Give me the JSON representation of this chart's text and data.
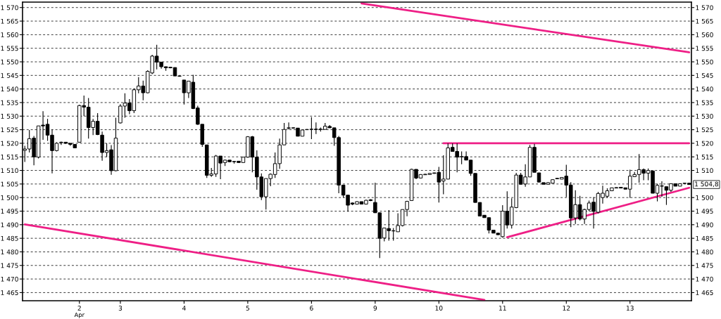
{
  "chart_data": {
    "type": "candlestick",
    "categories": [
      null,
      null,
      null,
      null,
      null,
      null,
      null,
      null,
      null,
      null,
      null,
      null,
      "2",
      null,
      null,
      null,
      null,
      null,
      null,
      null,
      null,
      "3",
      null,
      null,
      null,
      null,
      null,
      null,
      null,
      null,
      null,
      null,
      null,
      null,
      null,
      "4",
      null,
      null,
      null,
      null,
      null,
      null,
      null,
      null,
      null,
      null,
      null,
      null,
      null,
      "5",
      null,
      null,
      null,
      null,
      null,
      null,
      null,
      null,
      null,
      null,
      null,
      null,
      null,
      "6",
      null,
      null,
      null,
      null,
      null,
      null,
      null,
      null,
      null,
      null,
      null,
      null,
      null,
      "9",
      null,
      null,
      null,
      null,
      null,
      null,
      null,
      null,
      null,
      null,
      null,
      null,
      null,
      "10",
      null,
      null,
      null,
      null,
      null,
      null,
      null,
      null,
      null,
      null,
      null,
      null,
      null,
      "11",
      null,
      null,
      null,
      null,
      null,
      null,
      null,
      null,
      null,
      null,
      null,
      null,
      null,
      "12",
      null,
      null,
      null,
      null,
      null,
      null,
      null,
      null,
      null,
      null,
      null,
      null,
      null,
      "13",
      null,
      null,
      null,
      null,
      null,
      null,
      null,
      null,
      null,
      null,
      null,
      null,
      null
    ],
    "ohlc": [
      [
        1517.4,
        1519.1,
        1513.1,
        1517.9
      ],
      [
        1517.9,
        1524.9,
        1516.6,
        1521.7
      ],
      [
        1521.9,
        1522.7,
        1511.9,
        1515.0
      ],
      [
        1514.9,
        1526.4,
        1514.4,
        1526.4
      ],
      [
        1526.7,
        1531.8,
        1521.3,
        1526.4
      ],
      [
        1527.0,
        1529.0,
        1520.9,
        1523.0
      ],
      [
        1523.0,
        1525.1,
        1508.9,
        1517.3
      ],
      [
        1517.3,
        1520.4,
        1517.0,
        1520.0
      ],
      [
        1520.2,
        1520.6,
        1519.4,
        1520.4
      ],
      [
        1520.4,
        1520.4,
        1519.8,
        1520.0
      ],
      [
        1520.0,
        1520.0,
        1519.1,
        1519.6
      ],
      [
        1519.6,
        1519.6,
        1518.3,
        1518.3
      ],
      [
        1520.4,
        1534.2,
        1520.4,
        1533.9
      ],
      [
        1533.9,
        1537.6,
        1530.0,
        1533.3
      ],
      [
        1533.3,
        1536.7,
        1521.7,
        1525.8
      ],
      [
        1525.8,
        1529.0,
        1523.0,
        1528.1
      ],
      [
        1528.1,
        1531.1,
        1523.0,
        1523.2
      ],
      [
        1523.0,
        1524.3,
        1513.6,
        1516.6
      ],
      [
        1516.6,
        1520.0,
        1514.9,
        1517.3
      ],
      [
        1517.6,
        1519.3,
        1508.4,
        1509.9
      ],
      [
        1509.9,
        1529.4,
        1509.7,
        1521.9
      ],
      [
        1527.5,
        1534.4,
        1527.3,
        1533.7
      ],
      [
        1533.7,
        1538.4,
        1529.4,
        1534.8
      ],
      [
        1534.8,
        1536.3,
        1530.7,
        1532.0
      ],
      [
        1532.0,
        1540.2,
        1531.1,
        1539.7
      ],
      [
        1539.7,
        1544.4,
        1538.4,
        1541.1
      ],
      [
        1541.1,
        1543.1,
        1535.8,
        1538.6
      ],
      [
        1538.6,
        1546.9,
        1538.4,
        1546.5
      ],
      [
        1545.9,
        1552.6,
        1545.5,
        1552.1
      ],
      [
        1552.1,
        1556.3,
        1547.2,
        1549.9
      ],
      [
        1549.9,
        1549.9,
        1547.5,
        1548.2
      ],
      [
        1548.2,
        1548.2,
        1546.7,
        1547.8
      ],
      [
        1548.0,
        1548.2,
        1547.6,
        1547.8
      ],
      [
        1547.9,
        1547.9,
        1544.8,
        1544.8
      ],
      [
        1544.8,
        1544.8,
        1544.5,
        1544.7
      ],
      [
        1543.3,
        1543.3,
        1534.3,
        1538.6
      ],
      [
        1538.6,
        1542.9,
        1536.7,
        1542.9
      ],
      [
        1542.5,
        1545.2,
        1532.6,
        1532.8
      ],
      [
        1533.0,
        1533.8,
        1526.8,
        1527.0
      ],
      [
        1527.0,
        1527.0,
        1518.7,
        1519.6
      ],
      [
        1519.4,
        1519.4,
        1507.2,
        1508.2
      ],
      [
        1508.2,
        1510.9,
        1507.6,
        1508.7
      ],
      [
        1508.7,
        1515.7,
        1507.6,
        1515.3
      ],
      [
        1515.3,
        1515.3,
        1506.8,
        1512.7
      ],
      [
        1512.9,
        1514.0,
        1511.6,
        1513.8
      ],
      [
        1513.8,
        1513.8,
        1513.0,
        1513.2
      ],
      [
        1513.3,
        1513.4,
        1512.5,
        1513.2
      ],
      [
        1513.4,
        1513.4,
        1512.9,
        1512.9
      ],
      [
        1512.9,
        1514.9,
        1512.9,
        1514.9
      ],
      [
        1514.9,
        1522.6,
        1514.7,
        1522.4
      ],
      [
        1522.4,
        1522.7,
        1509.3,
        1514.9
      ],
      [
        1514.9,
        1517.4,
        1502.9,
        1507.6
      ],
      [
        1507.6,
        1508.9,
        1499.1,
        1500.3
      ],
      [
        1500.3,
        1507.0,
        1495.6,
        1507.0
      ],
      [
        1507.0,
        1508.9,
        1504.2,
        1508.6
      ],
      [
        1508.5,
        1516.6,
        1507.2,
        1512.5
      ],
      [
        1512.5,
        1521.7,
        1510.6,
        1519.4
      ],
      [
        1519.4,
        1527.5,
        1519.4,
        1525.1
      ],
      [
        1525.5,
        1527.7,
        1525.1,
        1525.7
      ],
      [
        1525.7,
        1525.8,
        1525.4,
        1525.6
      ],
      [
        1525.6,
        1525.6,
        1522.6,
        1522.6
      ],
      [
        1522.6,
        1524.9,
        1522.6,
        1524.9
      ],
      [
        1525.0,
        1525.2,
        1524.9,
        1525.1
      ],
      [
        1525.1,
        1529.6,
        1521.5,
        1525.2
      ],
      [
        1525.2,
        1527.7,
        1523.4,
        1525.1
      ],
      [
        1525.1,
        1525.8,
        1524.3,
        1525.2
      ],
      [
        1525.1,
        1527.5,
        1525.1,
        1526.3
      ],
      [
        1526.2,
        1526.7,
        1525.7,
        1525.7
      ],
      [
        1525.7,
        1525.7,
        1519.1,
        1522.1
      ],
      [
        1522.1,
        1522.7,
        1501.6,
        1504.6
      ],
      [
        1504.6,
        1504.6,
        1500.0,
        1500.9
      ],
      [
        1500.9,
        1500.9,
        1494.8,
        1497.2
      ],
      [
        1498.0,
        1498.2,
        1497.2,
        1497.6
      ],
      [
        1497.6,
        1498.6,
        1497.6,
        1498.5
      ],
      [
        1498.5,
        1498.5,
        1497.6,
        1497.6
      ],
      [
        1497.6,
        1499.2,
        1497.5,
        1499.0
      ],
      [
        1499.2,
        1499.4,
        1498.7,
        1498.9
      ],
      [
        1498.2,
        1505.5,
        1494.4,
        1494.4
      ],
      [
        1494.4,
        1494.4,
        1477.7,
        1485.0
      ],
      [
        1485.1,
        1488.8,
        1483.9,
        1488.8
      ],
      [
        1488.6,
        1495.4,
        1484.1,
        1487.8
      ],
      [
        1487.7,
        1488.8,
        1484.1,
        1487.8
      ],
      [
        1487.4,
        1494.2,
        1487.4,
        1489.7
      ],
      [
        1489.7,
        1495.6,
        1489.4,
        1495.6
      ],
      [
        1495.6,
        1498.8,
        1493.1,
        1498.6
      ],
      [
        1498.9,
        1510.6,
        1498.9,
        1510.4
      ],
      [
        1510.4,
        1510.4,
        1506.8,
        1507.2
      ],
      [
        1507.2,
        1508.6,
        1507.1,
        1508.5
      ],
      [
        1508.4,
        1508.7,
        1508.3,
        1508.6
      ],
      [
        1508.5,
        1509.0,
        1508.4,
        1508.9
      ],
      [
        1508.9,
        1509.2,
        1508.8,
        1509.1
      ],
      [
        1509.3,
        1511.3,
        1498.2,
        1505.7
      ],
      [
        1506.1,
        1515.6,
        1501.2,
        1506.8
      ],
      [
        1506.8,
        1520.0,
        1506.8,
        1518.3
      ],
      [
        1518.5,
        1520.0,
        1517.0,
        1517.0
      ],
      [
        1517.0,
        1520.0,
        1509.3,
        1514.9
      ],
      [
        1515.0,
        1517.0,
        1512.3,
        1515.1
      ],
      [
        1515.1,
        1517.0,
        1513.8,
        1513.8
      ],
      [
        1513.8,
        1513.8,
        1508.0,
        1508.9
      ],
      [
        1508.9,
        1508.9,
        1498.2,
        1498.2
      ],
      [
        1498.2,
        1498.2,
        1493.2,
        1493.2
      ],
      [
        1493.5,
        1493.6,
        1492.6,
        1492.6
      ],
      [
        1492.6,
        1492.6,
        1486.8,
        1488.0
      ],
      [
        1488.0,
        1488.0,
        1486.9,
        1486.9
      ],
      [
        1486.9,
        1486.9,
        1486.3,
        1486.3
      ],
      [
        1485.6,
        1497.2,
        1485.2,
        1495.0
      ],
      [
        1495.0,
        1502.3,
        1488.6,
        1489.9
      ],
      [
        1489.9,
        1499.7,
        1488.6,
        1496.5
      ],
      [
        1496.3,
        1509.1,
        1496.1,
        1508.3
      ],
      [
        1508.3,
        1509.1,
        1504.9,
        1504.9
      ],
      [
        1505.0,
        1512.3,
        1504.0,
        1507.6
      ],
      [
        1507.6,
        1519.4,
        1507.6,
        1518.5
      ],
      [
        1518.5,
        1519.8,
        1509.3,
        1509.3
      ],
      [
        1509.1,
        1509.1,
        1505.7,
        1505.7
      ],
      [
        1505.5,
        1505.5,
        1504.9,
        1504.9
      ],
      [
        1504.9,
        1505.6,
        1504.9,
        1505.5
      ],
      [
        1505.3,
        1506.7,
        1505.2,
        1506.6
      ],
      [
        1506.9,
        1507.2,
        1506.9,
        1507.1
      ],
      [
        1506.8,
        1507.4,
        1506.8,
        1507.4
      ],
      [
        1507.9,
        1512.1,
        1500.2,
        1504.6
      ],
      [
        1504.6,
        1505.7,
        1489.1,
        1492.5
      ],
      [
        1492.5,
        1502.7,
        1490.3,
        1497.4
      ],
      [
        1497.4,
        1500.6,
        1491.6,
        1492.1
      ],
      [
        1492.1,
        1495.9,
        1490.3,
        1495.6
      ],
      [
        1495.6,
        1498.9,
        1495.0,
        1498.0
      ],
      [
        1498.3,
        1500.2,
        1488.6,
        1494.9
      ],
      [
        1494.6,
        1502.1,
        1494.2,
        1501.5
      ],
      [
        1500.0,
        1504.4,
        1497.8,
        1501.6
      ],
      [
        1500.5,
        1503.4,
        1499.9,
        1502.5
      ],
      [
        1502.5,
        1503.6,
        1502.5,
        1503.6
      ],
      [
        1503.5,
        1503.8,
        1503.4,
        1503.7
      ],
      [
        1503.8,
        1503.9,
        1503.4,
        1503.5
      ],
      [
        1503.6,
        1503.6,
        1503.1,
        1503.1
      ],
      [
        1503.1,
        1510.3,
        1499.9,
        1507.9
      ],
      [
        1507.7,
        1509.4,
        1507.7,
        1508.5
      ],
      [
        1508.5,
        1516.0,
        1505.5,
        1510.3
      ],
      [
        1510.3,
        1510.7,
        1506.4,
        1509.0
      ],
      [
        1509.0,
        1510.7,
        1506.4,
        1510.0
      ],
      [
        1509.8,
        1509.8,
        1501.6,
        1501.6
      ],
      [
        1501.6,
        1505.1,
        1498.6,
        1504.5
      ],
      [
        1504.3,
        1506.0,
        1500.3,
        1504.2
      ],
      [
        1504.0,
        1504.0,
        1497.3,
        1502.7
      ],
      [
        1502.7,
        1505.1,
        1502.1,
        1505.1
      ],
      [
        1505.1,
        1505.1,
        1504.2,
        1504.2
      ],
      [
        1504.2,
        1505.2,
        1504.2,
        1505.1
      ],
      [
        1505.2,
        1505.4,
        1505.1,
        1505.3
      ],
      [
        1505.3,
        1505.4,
        1504.8,
        1504.8
      ]
    ],
    "series": [
      {
        "type": "line",
        "color": "#ee1f86",
        "values": [
          1490.1,
          null,
          null,
          null,
          null,
          null,
          null,
          null,
          null,
          null,
          null,
          null,
          null,
          null,
          null,
          null,
          null,
          null,
          null,
          null,
          null,
          null,
          null,
          null,
          null,
          null,
          null,
          null,
          null,
          null,
          null,
          null,
          null,
          null,
          null,
          null,
          null,
          null,
          null,
          null,
          null,
          null,
          null,
          null,
          null,
          null,
          null,
          null,
          null,
          null,
          null,
          null,
          null,
          null,
          null,
          null,
          null,
          null,
          null,
          null,
          null,
          null,
          null,
          null,
          null,
          null,
          null,
          null,
          null,
          null,
          null,
          null,
          null,
          null,
          null,
          null,
          null,
          null,
          null,
          null,
          null,
          null,
          null,
          null,
          null,
          null,
          null,
          null,
          null,
          null,
          null,
          null,
          null,
          null,
          null,
          null,
          null,
          null,
          null,
          null,
          null,
          1462.3,
          null,
          null,
          null,
          null,
          null,
          null,
          null,
          null,
          null,
          null,
          null,
          null,
          null,
          null,
          null,
          null,
          null,
          null,
          null,
          null,
          null,
          null,
          null,
          null,
          null,
          null,
          null,
          null,
          null,
          null,
          null,
          null,
          null,
          null,
          null,
          null,
          null,
          null,
          null,
          null,
          null,
          null,
          null,
          null,
          null
        ]
      },
      {
        "type": "line",
        "color": "#ee1f86",
        "values": [
          null,
          null,
          null,
          null,
          null,
          null,
          null,
          null,
          null,
          null,
          null,
          null,
          null,
          null,
          null,
          null,
          null,
          null,
          null,
          null,
          null,
          null,
          null,
          null,
          null,
          null,
          null,
          null,
          null,
          null,
          null,
          null,
          null,
          null,
          null,
          null,
          null,
          null,
          null,
          null,
          null,
          null,
          null,
          null,
          null,
          null,
          null,
          null,
          null,
          null,
          null,
          null,
          null,
          null,
          null,
          null,
          null,
          null,
          null,
          null,
          null,
          null,
          null,
          null,
          null,
          null,
          null,
          null,
          null,
          null,
          null,
          null,
          null,
          null,
          1571.5,
          null,
          null,
          null,
          null,
          null,
          null,
          null,
          null,
          null,
          null,
          null,
          null,
          null,
          null,
          null,
          null,
          null,
          null,
          null,
          null,
          null,
          null,
          null,
          null,
          null,
          null,
          null,
          null,
          null,
          null,
          null,
          null,
          null,
          null,
          null,
          null,
          null,
          null,
          null,
          null,
          null,
          null,
          null,
          null,
          null,
          null,
          null,
          null,
          null,
          null,
          null,
          null,
          null,
          null,
          null,
          null,
          null,
          null,
          null,
          null,
          null,
          null,
          null,
          null,
          null,
          null,
          null,
          null,
          null,
          null,
          null,
          1553.5
        ]
      },
      {
        "type": "line",
        "color": "#ee1f86",
        "values": [
          null,
          null,
          null,
          null,
          null,
          null,
          null,
          null,
          null,
          null,
          null,
          null,
          null,
          null,
          null,
          null,
          null,
          null,
          null,
          null,
          null,
          null,
          null,
          null,
          null,
          null,
          null,
          null,
          null,
          null,
          null,
          null,
          null,
          null,
          null,
          null,
          null,
          null,
          null,
          null,
          null,
          null,
          null,
          null,
          null,
          null,
          null,
          null,
          null,
          null,
          null,
          null,
          null,
          null,
          null,
          null,
          null,
          null,
          null,
          null,
          null,
          null,
          null,
          null,
          null,
          null,
          null,
          null,
          null,
          null,
          null,
          null,
          null,
          null,
          null,
          null,
          null,
          null,
          null,
          null,
          null,
          null,
          null,
          null,
          null,
          null,
          null,
          null,
          null,
          null,
          null,
          null,
          1520,
          null,
          null,
          null,
          null,
          null,
          null,
          null,
          null,
          null,
          null,
          null,
          null,
          null,
          null,
          null,
          null,
          null,
          null,
          null,
          null,
          null,
          null,
          null,
          null,
          null,
          null,
          null,
          null,
          null,
          null,
          null,
          null,
          null,
          null,
          null,
          null,
          null,
          null,
          null,
          null,
          null,
          null,
          null,
          null,
          null,
          null,
          null,
          null,
          null,
          null,
          null,
          null,
          null,
          1520
        ]
      },
      {
        "type": "line",
        "color": "#ee1f86",
        "values": [
          null,
          null,
          null,
          null,
          null,
          null,
          null,
          null,
          null,
          null,
          null,
          null,
          null,
          null,
          null,
          null,
          null,
          null,
          null,
          null,
          null,
          null,
          null,
          null,
          null,
          null,
          null,
          null,
          null,
          null,
          null,
          null,
          null,
          null,
          null,
          null,
          null,
          null,
          null,
          null,
          null,
          null,
          null,
          null,
          null,
          null,
          null,
          null,
          null,
          null,
          null,
          null,
          null,
          null,
          null,
          null,
          null,
          null,
          null,
          null,
          null,
          null,
          null,
          null,
          null,
          null,
          null,
          null,
          null,
          null,
          null,
          null,
          null,
          null,
          null,
          null,
          null,
          null,
          null,
          null,
          null,
          null,
          null,
          null,
          null,
          null,
          null,
          null,
          null,
          null,
          null,
          null,
          null,
          null,
          null,
          null,
          null,
          null,
          null,
          null,
          null,
          null,
          null,
          null,
          null,
          null,
          1485.4,
          null,
          null,
          null,
          null,
          null,
          null,
          null,
          null,
          null,
          null,
          null,
          null,
          null,
          null,
          null,
          null,
          null,
          null,
          null,
          null,
          null,
          null,
          null,
          null,
          null,
          null,
          null,
          null,
          null,
          null,
          null,
          null,
          null,
          null,
          null,
          null,
          null,
          null,
          null,
          1503.6
        ]
      }
    ],
    "ylim": [
      1462,
      1572
    ],
    "yticks": [
      {
        "value": 1465,
        "label": "1 465"
      },
      {
        "value": 1470,
        "label": "1 470"
      },
      {
        "value": 1475,
        "label": "1 475"
      },
      {
        "value": 1480,
        "label": "1 480"
      },
      {
        "value": 1485,
        "label": "1 485"
      },
      {
        "value": 1490,
        "label": "1 490"
      },
      {
        "value": 1495,
        "label": "1 495"
      },
      {
        "value": 1500,
        "label": "1 500"
      },
      {
        "value": 1505,
        "label": "1 505"
      },
      {
        "value": 1510,
        "label": "1 510"
      },
      {
        "value": 1515,
        "label": "1 515"
      },
      {
        "value": 1520,
        "label": "1 520"
      },
      {
        "value": 1525,
        "label": "1 525"
      },
      {
        "value": 1530,
        "label": "1 530"
      },
      {
        "value": 1535,
        "label": "1 535"
      },
      {
        "value": 1540,
        "label": "1 540"
      },
      {
        "value": 1545,
        "label": "1 545"
      },
      {
        "value": 1550,
        "label": "1 550"
      },
      {
        "value": 1555,
        "label": "1 555"
      },
      {
        "value": 1560,
        "label": "1 560"
      },
      {
        "value": 1565,
        "label": "1 565"
      },
      {
        "value": 1570,
        "label": "1 570"
      }
    ],
    "y2lim": [
      1462,
      1572
    ],
    "y2ticks": [
      {
        "value": 1465,
        "label": "1 465"
      },
      {
        "value": 1470,
        "label": "1 470"
      },
      {
        "value": 1475,
        "label": "1 475"
      },
      {
        "value": 1480,
        "label": "1 480"
      },
      {
        "value": 1485,
        "label": "1 485"
      },
      {
        "value": 1490,
        "label": "1 490"
      },
      {
        "value": 1495,
        "label": "1 495"
      },
      {
        "value": 1500,
        "label": "1 500"
      },
      {
        "value": 1510,
        "label": "1 510"
      },
      {
        "value": 1515,
        "label": "1 515"
      },
      {
        "value": 1520,
        "label": "1 520"
      },
      {
        "value": 1525,
        "label": "1 525"
      },
      {
        "value": 1530,
        "label": "1 530"
      },
      {
        "value": 1535,
        "label": "1 535"
      },
      {
        "value": 1540,
        "label": "1 540"
      },
      {
        "value": 1545,
        "label": "1 545"
      },
      {
        "value": 1550,
        "label": "1 550"
      },
      {
        "value": 1555,
        "label": "1 555"
      },
      {
        "value": 1560,
        "label": "1 560"
      },
      {
        "value": 1565,
        "label": "1 565"
      },
      {
        "value": 1570,
        "label": "1 570"
      }
    ],
    "grid": "y",
    "annotations": [
      "Apr",
      "1 504,8"
    ]
  }
}
